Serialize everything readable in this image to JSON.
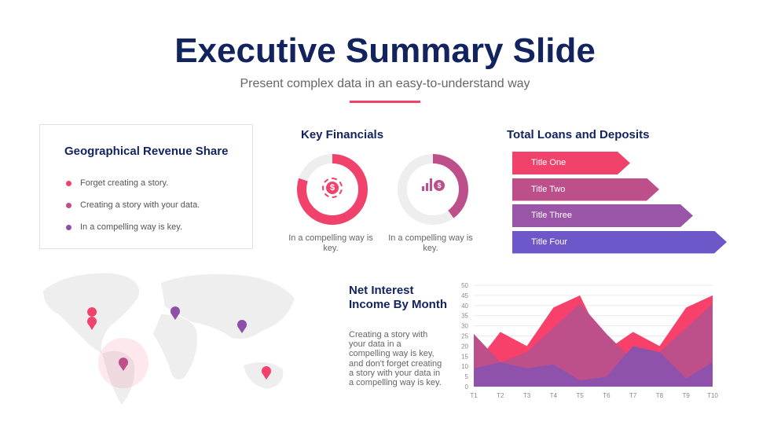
{
  "header": {
    "title": "Executive Summary Slide",
    "subtitle": "Present complex data in an easy-to-understand way"
  },
  "geo": {
    "title": "Geographical Revenue Share",
    "items": [
      {
        "text": "Forget creating a story.",
        "color": "#f0426a"
      },
      {
        "text": "Creating a story with your data.",
        "color": "#bd4f8a"
      },
      {
        "text": "In a compelling way is key.",
        "color": "#8e4fa8"
      }
    ]
  },
  "key_financials": {
    "title": "Key Financials",
    "donuts": [
      {
        "caption": "In a compelling way is key.",
        "percent": 80,
        "color": "#f0426a",
        "icon": "dollar-cycle-icon"
      },
      {
        "caption": "In a compelling way is key.",
        "percent": 40,
        "color": "#bd4f8a",
        "icon": "growth-dollar-icon"
      }
    ]
  },
  "loans": {
    "title": "Total Loans and Deposits",
    "bars": [
      {
        "label": "Title One",
        "color": "#f0426a",
        "value": 1
      },
      {
        "label": "Title Two",
        "color": "#bd4f8a",
        "value": 2
      },
      {
        "label": "Title Three",
        "color": "#9a55a8",
        "value": 3
      },
      {
        "label": "Title Four",
        "color": "#6e58c9",
        "value": 4
      }
    ]
  },
  "nim": {
    "title_line1": "Net Interest",
    "title_line2": "Income By Month",
    "text": "Creating a story with your data in a compelling way is key, and don't forget creating a story with your data in a compelling way is key."
  },
  "chart_data": {
    "type": "area",
    "categories": [
      "T1",
      "T2",
      "T3",
      "T4",
      "T5",
      "T6",
      "T7",
      "T8",
      "T9",
      "T10"
    ],
    "ylim": [
      0,
      50
    ],
    "yticks": [
      0,
      5,
      10,
      15,
      20,
      25,
      30,
      35,
      40,
      45,
      50
    ],
    "grid": true,
    "series": [
      {
        "color": "#f7416b",
        "values": [
          10,
          27,
          20,
          39,
          45,
          18,
          27,
          20,
          39,
          45
        ]
      },
      {
        "color": "#bd4f8a",
        "values": [
          26,
          12,
          17,
          29,
          41,
          26,
          13,
          17,
          29,
          41
        ]
      },
      {
        "color": "#8e52ad",
        "values": [
          9,
          12,
          9,
          11,
          3,
          5,
          20,
          17,
          4,
          12
        ]
      }
    ]
  }
}
